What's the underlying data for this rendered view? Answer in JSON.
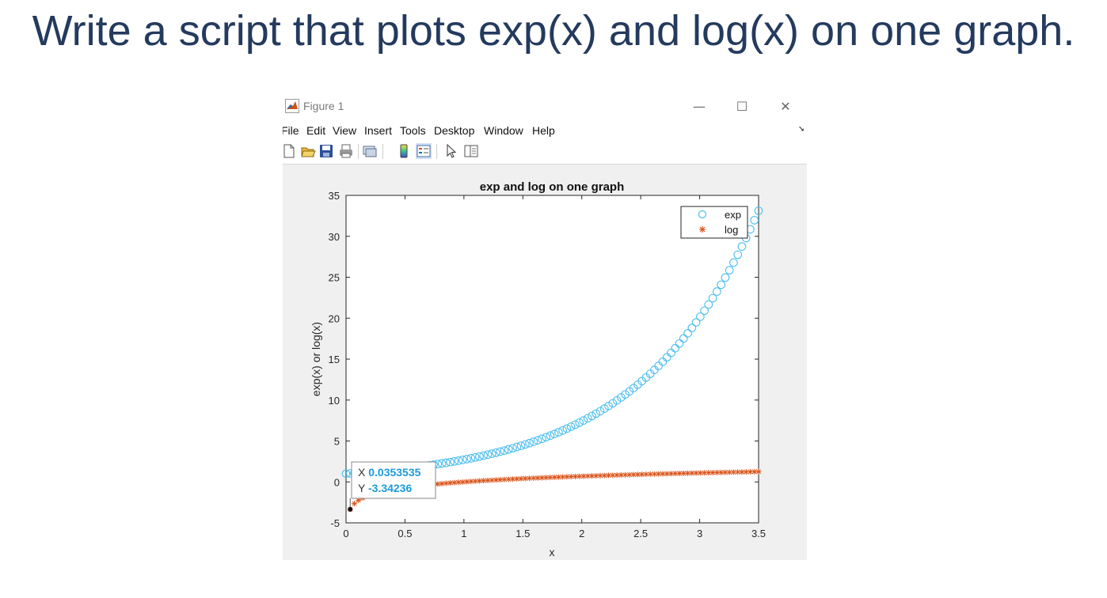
{
  "slide": {
    "title": "Write a script that plots exp(x) and log(x) on one graph."
  },
  "window": {
    "title": "Figure 1",
    "minimize_glyph": "—",
    "maximize_glyph": "☐",
    "close_glyph": "✕"
  },
  "menu": {
    "file": "File",
    "edit": "Edit",
    "view": "View",
    "insert": "Insert",
    "tools": "Tools",
    "desktop": "Desktop",
    "window": "Window",
    "help": "Help"
  },
  "toolbar": {
    "icons": [
      "new-figure-icon",
      "open-file-icon",
      "save-icon",
      "print-icon",
      "link-plot-icon",
      "colorbar-icon",
      "legend-icon",
      "pointer-icon",
      "property-inspector-icon"
    ]
  },
  "datatip": {
    "x_label": "X",
    "x_value": "0.0353535",
    "y_label": "Y",
    "y_value": "-3.34236",
    "x": 0.0353535,
    "y": -3.34236
  },
  "chart_data": {
    "type": "scatter",
    "title": "exp and log on one graph",
    "xlabel": "x",
    "ylabel": "exp(x) or log(x)",
    "xlim": [
      0,
      3.5
    ],
    "ylim": [
      -5,
      35
    ],
    "x_ticks": [
      "0",
      "0.5",
      "1",
      "1.5",
      "2",
      "2.5",
      "3",
      "3.5"
    ],
    "y_ticks": [
      "-5",
      "0",
      "5",
      "10",
      "15",
      "20",
      "25",
      "30",
      "35"
    ],
    "x_tick_values": [
      0,
      0.5,
      1,
      1.5,
      2,
      2.5,
      3,
      3.5
    ],
    "y_tick_values": [
      -5,
      0,
      5,
      10,
      15,
      20,
      25,
      30,
      35
    ],
    "x": {
      "start": 0,
      "end": 3.5,
      "count": 100
    },
    "series": [
      {
        "name": "exp",
        "function": "exp(x)",
        "marker": "o",
        "color": "#4dbeee"
      },
      {
        "name": "log",
        "function": "log(x)",
        "marker": "*",
        "color": "#d95319"
      }
    ],
    "legend": "top-right",
    "grid": false,
    "colors": {
      "axes_background": "#ffffff",
      "figure_background": "#f0f0f0"
    }
  }
}
